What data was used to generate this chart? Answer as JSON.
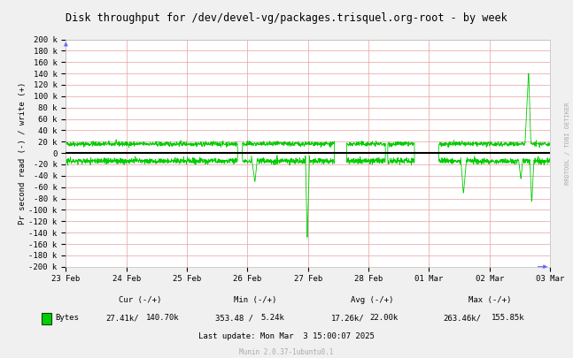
{
  "title": "Disk throughput for /dev/devel-vg/packages.trisquel.org-root - by week",
  "ylabel": "Pr second read (-) / write (+)",
  "outer_bg_color": "#f0f0f0",
  "plot_bg_color": "#ffffff",
  "grid_color": "#e8a0a0",
  "line_color": "#00cc00",
  "zero_line_color": "#000000",
  "ylim": [
    -200000,
    200000
  ],
  "yticks": [
    -200000,
    -180000,
    -160000,
    -140000,
    -120000,
    -100000,
    -80000,
    -60000,
    -40000,
    -20000,
    0,
    20000,
    40000,
    60000,
    80000,
    100000,
    120000,
    140000,
    160000,
    180000,
    200000
  ],
  "ytick_labels": [
    "-200 k",
    "-180 k",
    "-160 k",
    "-140 k",
    "-120 k",
    "-100 k",
    "-80 k",
    "-60 k",
    "-40 k",
    "-20 k",
    "0",
    "20 k",
    "40 k",
    "60 k",
    "80 k",
    "100 k",
    "120 k",
    "140 k",
    "160 k",
    "180 k",
    "200 k"
  ],
  "xtick_labels": [
    "23 Feb",
    "24 Feb",
    "25 Feb",
    "26 Feb",
    "27 Feb",
    "28 Feb",
    "01 Mar",
    "02 Mar",
    "03 Mar"
  ],
  "legend_label": "Bytes",
  "cur_neg": "27.41k/",
  "cur_pos": "140.70k",
  "min_neg": "353.48 /",
  "min_pos": "5.24k",
  "avg_neg": "17.26k/",
  "avg_pos": "22.00k",
  "max_neg": "263.46k/",
  "max_pos": "155.85k",
  "last_update": "Last update: Mon Mar  3 15:00:07 2025",
  "munin_version": "Munin 2.0.37-1ubuntu0.1",
  "rrdtool_label": "RRDTOOL / TOBI OETIKER"
}
